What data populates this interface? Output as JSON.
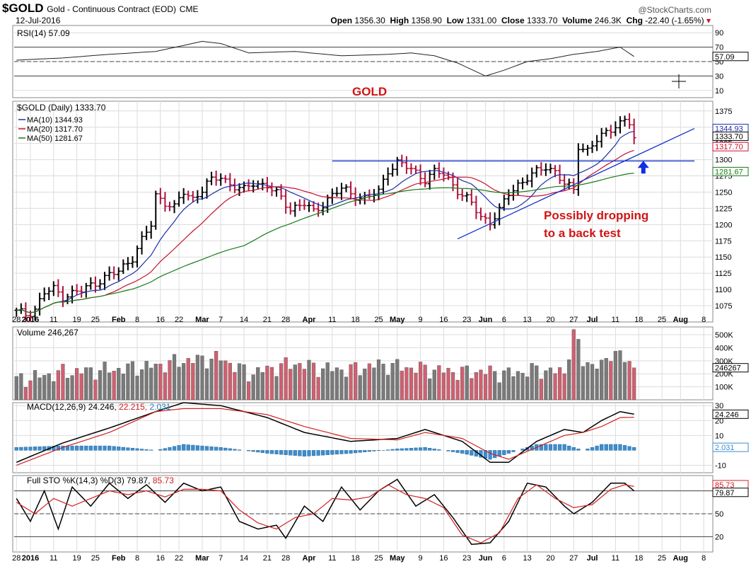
{
  "header": {
    "symbol": "$GOLD",
    "name": "Gold - Continuous Contract (EOD)",
    "exchange": "CME",
    "date": "12-Jul-2016",
    "site": "@StockCharts.com",
    "open_label": "Open",
    "open": "1356.30",
    "high_label": "High",
    "high": "1358.90",
    "low_label": "Low",
    "low": "1331.00",
    "close_label": "Close",
    "close": "1333.70",
    "volume_label": "Volume",
    "volume": "246.3K",
    "chg_label": "Chg",
    "chg": "-22.40 (-1.65%)",
    "chg_arrow": "▾"
  },
  "annotations": {
    "gold": "GOLD",
    "note_line1": "Possibly dropping",
    "note_line2": "to a back test"
  },
  "colors": {
    "up_bar": "#000000",
    "down_bar": "#b0103a",
    "ma10": "#1f2fa8",
    "ma20": "#c8102e",
    "ma50": "#1a7a1a",
    "trendline": "#1030c8",
    "annotation_red": "#d21414",
    "volume_up": "#7a7a7a",
    "volume_down": "#d06070",
    "macd_hist": "#3a8ed0",
    "grid": "#dcdcdc"
  },
  "chart_data": [
    {
      "type": "line",
      "panel": "rsi",
      "title": "RSI(14) 57.09",
      "last": "57.09",
      "ylim": [
        0,
        100
      ],
      "yticks": [
        10,
        30,
        50,
        70,
        90
      ],
      "levels": [
        30,
        50,
        70
      ],
      "x_index": [
        0,
        10,
        20,
        30,
        40,
        44,
        50,
        60,
        70,
        80,
        85,
        90,
        95,
        101,
        105,
        110,
        115,
        120,
        125,
        130,
        133
      ],
      "values": [
        52,
        55,
        60,
        64,
        78,
        75,
        62,
        64,
        58,
        60,
        62,
        58,
        48,
        30,
        38,
        50,
        54,
        60,
        64,
        70,
        57.09
      ]
    },
    {
      "type": "bar",
      "panel": "price",
      "title": "$GOLD (Daily) 1333.70",
      "ylim": [
        1050,
        1390
      ],
      "yticks": [
        1075,
        1100,
        1125,
        1150,
        1175,
        1200,
        1225,
        1250,
        1275,
        1300,
        1325,
        1350,
        1375
      ],
      "x_labels": [
        "28",
        "2016",
        "11",
        "19",
        "25",
        "Feb",
        "8",
        "16",
        "22",
        "Mar",
        "7",
        "14",
        "21",
        "28",
        "Apr",
        "11",
        "18",
        "25",
        "May",
        "9",
        "16",
        "23",
        "Jun",
        "6",
        "13",
        "20",
        "27",
        "Jul",
        "11",
        "18",
        "25",
        "Aug",
        "8"
      ],
      "x_label_index": [
        0,
        3,
        8,
        13,
        17,
        22,
        26,
        31,
        35,
        40,
        44,
        49,
        54,
        58,
        63,
        68,
        73,
        78,
        82,
        87,
        92,
        97,
        101,
        105,
        110,
        115,
        120,
        124,
        129,
        134,
        139,
        143,
        148
      ],
      "closes_key": [
        0,
        1065,
        2,
        1062,
        4,
        1070,
        6,
        1095,
        8,
        1100,
        10,
        1090,
        14,
        1098,
        18,
        1115,
        22,
        1128,
        25,
        1150,
        27,
        1175,
        29,
        1200,
        30,
        1245,
        32,
        1235,
        34,
        1225,
        36,
        1250,
        38,
        1240,
        41,
        1262,
        44,
        1275,
        46,
        1262,
        49,
        1252,
        51,
        1265,
        54,
        1260,
        57,
        1240,
        59,
        1225,
        62,
        1232,
        64,
        1218,
        67,
        1240,
        70,
        1255,
        72,
        1248,
        75,
        1240,
        78,
        1250,
        80,
        1285,
        82,
        1295,
        85,
        1285,
        88,
        1270,
        90,
        1280,
        92,
        1278,
        94,
        1262,
        96,
        1245,
        98,
        1232,
        100,
        1212,
        102,
        1205,
        104,
        1220,
        106,
        1248,
        108,
        1262,
        110,
        1272,
        112,
        1280,
        114,
        1290,
        116,
        1282,
        118,
        1262,
        120,
        1252,
        121,
        1322,
        123,
        1315,
        125,
        1330,
        127,
        1340,
        129,
        1355,
        131,
        1360,
        132,
        1356,
        133,
        1333.7
      ],
      "ma_labels": [
        "MA(10) 1344.93",
        "MA(20) 1317.70",
        "MA(50) 1281.67"
      ],
      "ma_last": [
        1344.93,
        1317.7,
        1281.67
      ],
      "last_close": "1333.70",
      "right_labels": [
        "1344.93",
        "1333.70",
        "1317.70",
        "1300",
        "1281.67"
      ]
    },
    {
      "type": "bar",
      "panel": "volume",
      "title": "Volume 246,267",
      "last": "246267",
      "ylim": [
        0,
        560000
      ],
      "yticks": [
        "100K",
        "200K",
        "300K",
        "400K",
        "500K"
      ],
      "ytick_values": [
        100000,
        200000,
        300000,
        400000,
        500000
      ],
      "values_thousands_key": [
        0,
        150,
        10,
        210,
        20,
        230,
        30,
        260,
        36,
        300,
        44,
        320,
        50,
        200,
        56,
        250,
        60,
        280,
        66,
        240,
        72,
        230,
        78,
        270,
        84,
        250,
        90,
        230,
        96,
        210,
        100,
        220,
        106,
        200,
        112,
        230,
        118,
        210,
        120,
        540,
        122,
        300,
        126,
        250,
        128,
        370,
        130,
        340,
        133,
        246
      ]
    },
    {
      "type": "line",
      "panel": "macd",
      "title": "MACD(12,26,9) 24.246, 22.215, 2.031",
      "macd": "24.246",
      "signal": "22.215",
      "hist": "2.031",
      "ylim": [
        -15,
        32
      ],
      "yticks": [
        -10,
        10,
        20,
        30
      ],
      "macd_key": [
        0,
        -8,
        10,
        5,
        20,
        15,
        30,
        26,
        36,
        32,
        44,
        30,
        54,
        22,
        62,
        12,
        72,
        6,
        82,
        8,
        88,
        14,
        96,
        6,
        102,
        -8,
        106,
        -8,
        112,
        6,
        118,
        14,
        122,
        12,
        126,
        20,
        130,
        26,
        133,
        24.246
      ],
      "signal_key": [
        0,
        -10,
        10,
        2,
        20,
        12,
        30,
        26,
        36,
        28,
        44,
        28,
        54,
        24,
        62,
        16,
        72,
        8,
        82,
        7,
        88,
        12,
        96,
        8,
        102,
        -2,
        106,
        -6,
        112,
        2,
        118,
        10,
        122,
        12,
        126,
        16,
        130,
        22,
        133,
        22.215
      ]
    },
    {
      "type": "line",
      "panel": "sto",
      "title": "Full STO %K(14,3) %D(3) 79.87, 85.73",
      "k": "79.87",
      "d": "85.73",
      "ylim": [
        0,
        100
      ],
      "yticks": [
        20,
        50,
        80
      ],
      "k_key": [
        0,
        70,
        3,
        40,
        6,
        80,
        9,
        30,
        12,
        85,
        16,
        60,
        20,
        90,
        24,
        70,
        28,
        88,
        32,
        65,
        36,
        90,
        40,
        80,
        44,
        85,
        48,
        40,
        52,
        30,
        56,
        35,
        58,
        18,
        62,
        60,
        66,
        40,
        70,
        85,
        74,
        55,
        78,
        80,
        82,
        95,
        86,
        60,
        90,
        75,
        94,
        45,
        98,
        10,
        102,
        12,
        106,
        40,
        110,
        90,
        114,
        85,
        118,
        60,
        120,
        50,
        124,
        65,
        128,
        90,
        131,
        90,
        133,
        79.87
      ],
      "d_key": [
        0,
        65,
        4,
        50,
        8,
        70,
        12,
        60,
        16,
        70,
        20,
        80,
        24,
        75,
        28,
        80,
        32,
        72,
        36,
        82,
        40,
        82,
        44,
        80,
        48,
        55,
        52,
        38,
        56,
        30,
        60,
        45,
        64,
        50,
        68,
        70,
        72,
        68,
        76,
        72,
        80,
        88,
        84,
        75,
        88,
        70,
        92,
        58,
        96,
        22,
        100,
        12,
        104,
        25,
        108,
        70,
        112,
        88,
        116,
        70,
        120,
        58,
        124,
        62,
        128,
        82,
        131,
        88,
        133,
        85.73
      ]
    }
  ]
}
